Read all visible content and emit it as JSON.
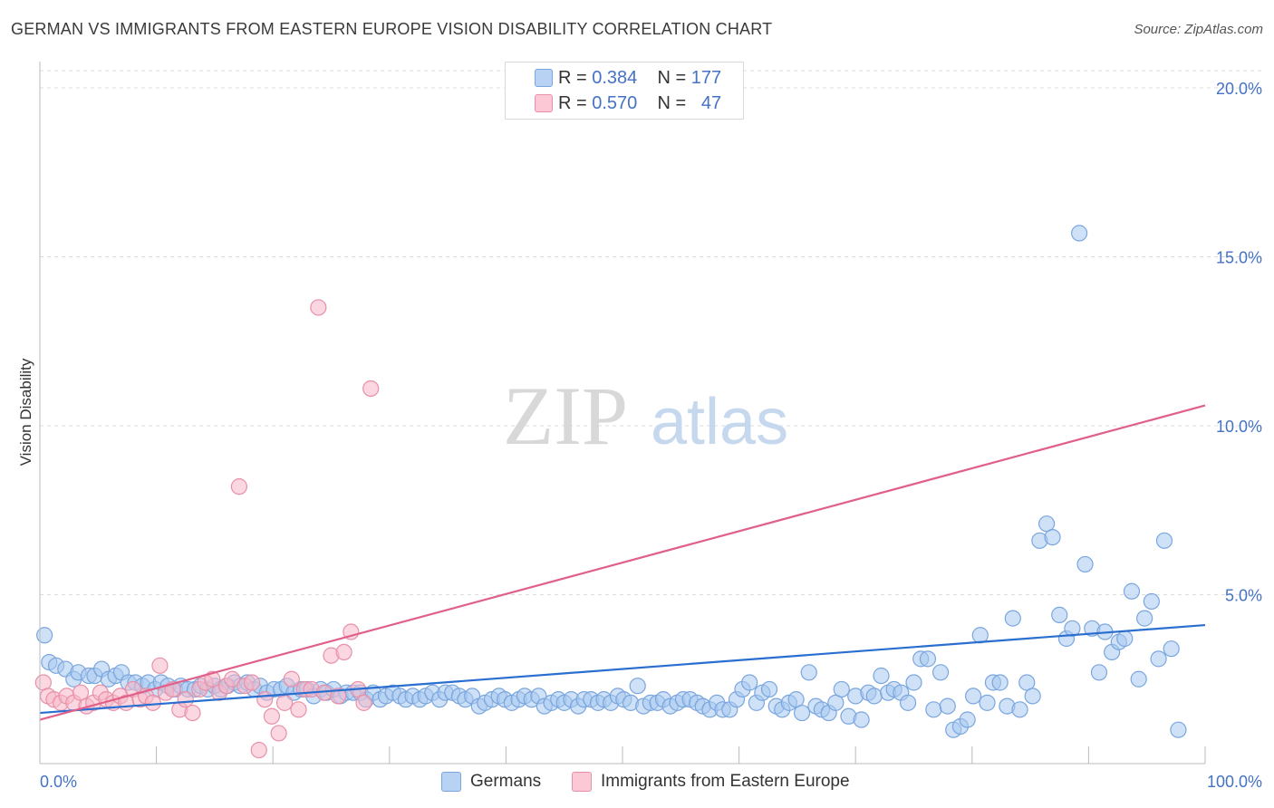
{
  "header": {
    "title": "GERMAN VS IMMIGRANTS FROM EASTERN EUROPE VISION DISABILITY CORRELATION CHART",
    "source": "Source: ZipAtlas.com"
  },
  "legend": {
    "rows": [
      {
        "r_label": "R =",
        "r_value": "0.384",
        "n_label": "N =",
        "n_value": "177",
        "color": "#a8c8f0"
      },
      {
        "r_label": "R =",
        "r_value": "0.570",
        "n_label": "N =",
        "n_value": "47",
        "color": "#f8b8c8"
      }
    ]
  },
  "bottom_legend": {
    "germans": "Germans",
    "immigrants": "Immigrants from Eastern Europe"
  },
  "watermark": {
    "zip": "ZIP",
    "atlas": "atlas"
  },
  "colors": {
    "blue_fill": "#a8c8f0",
    "blue_stroke": "#7aa6de",
    "blue_line": "#2a6fd0",
    "pink_fill": "#f8b8c8",
    "pink_stroke": "#e890a8",
    "pink_line": "#e0608a",
    "tick_text": "#4472c4"
  },
  "chart_data": {
    "type": "scatter",
    "title": "GERMAN VS IMMIGRANTS FROM EASTERN EUROPE VISION DISABILITY CORRELATION CHART",
    "xlabel": "",
    "ylabel": "Vision Disability",
    "xlim": [
      0,
      100
    ],
    "ylim": [
      0,
      21
    ],
    "x_tick_labels": [
      "0.0%",
      "100.0%"
    ],
    "y_ticks": [
      5,
      10,
      15,
      20
    ],
    "y_tick_labels": [
      "5.0%",
      "10.0%",
      "15.0%",
      "20.0%"
    ],
    "grid": true,
    "legend_position": "top-center",
    "series": [
      {
        "name": "Germans",
        "color": "#a8c8f0",
        "trend": {
          "x": [
            0,
            100
          ],
          "y": [
            1.5,
            4.1
          ]
        },
        "points": [
          [
            0.4,
            3.8
          ],
          [
            0.8,
            3.0
          ],
          [
            1.4,
            2.9
          ],
          [
            2.2,
            2.8
          ],
          [
            2.9,
            2.5
          ],
          [
            3.3,
            2.7
          ],
          [
            4.2,
            2.6
          ],
          [
            4.7,
            2.6
          ],
          [
            5.3,
            2.8
          ],
          [
            5.9,
            2.5
          ],
          [
            6.5,
            2.6
          ],
          [
            7.0,
            2.7
          ],
          [
            7.6,
            2.4
          ],
          [
            8.2,
            2.4
          ],
          [
            8.8,
            2.3
          ],
          [
            9.3,
            2.4
          ],
          [
            9.9,
            2.2
          ],
          [
            10.4,
            2.4
          ],
          [
            11.0,
            2.3
          ],
          [
            11.6,
            2.2
          ],
          [
            12.1,
            2.3
          ],
          [
            12.7,
            2.2
          ],
          [
            13.3,
            2.2
          ],
          [
            13.8,
            2.3
          ],
          [
            14.4,
            2.2
          ],
          [
            15.0,
            2.3
          ],
          [
            15.5,
            2.2
          ],
          [
            16.1,
            2.3
          ],
          [
            16.7,
            2.4
          ],
          [
            17.2,
            2.3
          ],
          [
            17.8,
            2.4
          ],
          [
            18.4,
            2.2
          ],
          [
            18.9,
            2.3
          ],
          [
            19.5,
            2.1
          ],
          [
            20.1,
            2.2
          ],
          [
            20.7,
            2.2
          ],
          [
            21.2,
            2.3
          ],
          [
            21.8,
            2.1
          ],
          [
            22.4,
            2.2
          ],
          [
            22.9,
            2.2
          ],
          [
            23.5,
            2.0
          ],
          [
            24.1,
            2.2
          ],
          [
            24.6,
            2.1
          ],
          [
            25.2,
            2.2
          ],
          [
            25.8,
            2.0
          ],
          [
            26.3,
            2.1
          ],
          [
            26.9,
            2.1
          ],
          [
            27.5,
            2.1
          ],
          [
            28.0,
            1.9
          ],
          [
            28.6,
            2.1
          ],
          [
            29.2,
            1.9
          ],
          [
            29.7,
            2.0
          ],
          [
            30.3,
            2.1
          ],
          [
            30.9,
            2.0
          ],
          [
            31.4,
            1.9
          ],
          [
            32.0,
            2.0
          ],
          [
            32.6,
            1.9
          ],
          [
            33.1,
            2.0
          ],
          [
            33.7,
            2.1
          ],
          [
            34.3,
            1.9
          ],
          [
            34.8,
            2.1
          ],
          [
            35.4,
            2.1
          ],
          [
            36.0,
            2.0
          ],
          [
            36.5,
            1.9
          ],
          [
            37.1,
            2.0
          ],
          [
            37.7,
            1.7
          ],
          [
            38.2,
            1.8
          ],
          [
            38.8,
            1.9
          ],
          [
            39.4,
            2.0
          ],
          [
            39.9,
            1.9
          ],
          [
            40.5,
            1.8
          ],
          [
            41.1,
            1.9
          ],
          [
            41.6,
            2.0
          ],
          [
            42.2,
            1.9
          ],
          [
            42.8,
            2.0
          ],
          [
            43.3,
            1.7
          ],
          [
            43.9,
            1.8
          ],
          [
            44.5,
            1.9
          ],
          [
            45.0,
            1.8
          ],
          [
            45.6,
            1.9
          ],
          [
            46.2,
            1.7
          ],
          [
            46.7,
            1.9
          ],
          [
            47.3,
            1.9
          ],
          [
            47.9,
            1.8
          ],
          [
            48.4,
            1.9
          ],
          [
            49.0,
            1.8
          ],
          [
            49.6,
            2.0
          ],
          [
            50.1,
            1.9
          ],
          [
            50.7,
            1.8
          ],
          [
            51.3,
            2.3
          ],
          [
            51.8,
            1.7
          ],
          [
            52.4,
            1.8
          ],
          [
            53.0,
            1.8
          ],
          [
            53.5,
            1.9
          ],
          [
            54.1,
            1.7
          ],
          [
            54.7,
            1.8
          ],
          [
            55.2,
            1.9
          ],
          [
            55.8,
            1.9
          ],
          [
            56.4,
            1.8
          ],
          [
            56.9,
            1.7
          ],
          [
            57.5,
            1.6
          ],
          [
            58.1,
            1.8
          ],
          [
            58.6,
            1.6
          ],
          [
            59.2,
            1.6
          ],
          [
            59.8,
            1.9
          ],
          [
            60.3,
            2.2
          ],
          [
            60.9,
            2.4
          ],
          [
            61.5,
            1.8
          ],
          [
            62.0,
            2.1
          ],
          [
            62.6,
            2.2
          ],
          [
            63.2,
            1.7
          ],
          [
            63.7,
            1.6
          ],
          [
            64.3,
            1.8
          ],
          [
            64.9,
            1.9
          ],
          [
            65.4,
            1.5
          ],
          [
            66.0,
            2.7
          ],
          [
            66.6,
            1.7
          ],
          [
            67.1,
            1.6
          ],
          [
            67.7,
            1.5
          ],
          [
            68.3,
            1.8
          ],
          [
            68.8,
            2.2
          ],
          [
            69.4,
            1.4
          ],
          [
            70.0,
            2.0
          ],
          [
            70.5,
            1.3
          ],
          [
            71.1,
            2.1
          ],
          [
            71.6,
            2.0
          ],
          [
            72.2,
            2.6
          ],
          [
            72.8,
            2.1
          ],
          [
            73.3,
            2.2
          ],
          [
            73.9,
            2.1
          ],
          [
            74.5,
            1.8
          ],
          [
            75.0,
            2.4
          ],
          [
            75.6,
            3.1
          ],
          [
            76.2,
            3.1
          ],
          [
            76.7,
            1.6
          ],
          [
            77.3,
            2.7
          ],
          [
            77.9,
            1.7
          ],
          [
            78.4,
            1.0
          ],
          [
            79.0,
            1.1
          ],
          [
            79.6,
            1.3
          ],
          [
            80.1,
            2.0
          ],
          [
            80.7,
            3.8
          ],
          [
            81.3,
            1.8
          ],
          [
            81.8,
            2.4
          ],
          [
            82.4,
            2.4
          ],
          [
            83.0,
            1.7
          ],
          [
            83.5,
            4.3
          ],
          [
            84.1,
            1.6
          ],
          [
            84.7,
            2.4
          ],
          [
            85.2,
            2.0
          ],
          [
            85.8,
            6.6
          ],
          [
            86.4,
            7.1
          ],
          [
            86.9,
            6.7
          ],
          [
            87.5,
            4.4
          ],
          [
            88.1,
            3.7
          ],
          [
            88.6,
            4.0
          ],
          [
            89.2,
            15.7
          ],
          [
            89.7,
            5.9
          ],
          [
            90.3,
            4.0
          ],
          [
            90.9,
            2.7
          ],
          [
            91.4,
            3.9
          ],
          [
            92.0,
            3.3
          ],
          [
            92.6,
            3.6
          ],
          [
            93.1,
            3.7
          ],
          [
            93.7,
            5.1
          ],
          [
            94.3,
            2.5
          ],
          [
            94.8,
            4.3
          ],
          [
            95.4,
            4.8
          ],
          [
            96.0,
            3.1
          ],
          [
            96.5,
            6.6
          ],
          [
            97.1,
            3.4
          ],
          [
            97.7,
            1.0
          ]
        ]
      },
      {
        "name": "Immigrants from Eastern Europe",
        "color": "#f8b8c8",
        "trend": {
          "x": [
            0,
            100
          ],
          "y": [
            1.3,
            10.6
          ]
        },
        "points": [
          [
            0.3,
            2.4
          ],
          [
            0.7,
            2.0
          ],
          [
            1.2,
            1.9
          ],
          [
            1.8,
            1.8
          ],
          [
            2.3,
            2.0
          ],
          [
            2.9,
            1.8
          ],
          [
            3.5,
            2.1
          ],
          [
            4.0,
            1.7
          ],
          [
            4.6,
            1.8
          ],
          [
            5.2,
            2.1
          ],
          [
            5.7,
            1.9
          ],
          [
            6.3,
            1.8
          ],
          [
            6.9,
            2.0
          ],
          [
            7.4,
            1.8
          ],
          [
            8.0,
            2.2
          ],
          [
            8.6,
            1.9
          ],
          [
            9.1,
            2.0
          ],
          [
            9.7,
            1.8
          ],
          [
            10.3,
            2.9
          ],
          [
            10.8,
            2.1
          ],
          [
            11.4,
            2.2
          ],
          [
            12.0,
            1.6
          ],
          [
            12.5,
            1.9
          ],
          [
            13.1,
            1.5
          ],
          [
            13.7,
            2.2
          ],
          [
            14.2,
            2.4
          ],
          [
            14.8,
            2.5
          ],
          [
            15.4,
            2.1
          ],
          [
            16.0,
            2.3
          ],
          [
            16.5,
            2.5
          ],
          [
            17.1,
            8.2
          ],
          [
            17.6,
            2.3
          ],
          [
            18.2,
            2.4
          ],
          [
            18.8,
            0.4
          ],
          [
            19.3,
            1.9
          ],
          [
            19.9,
            1.4
          ],
          [
            20.5,
            0.9
          ],
          [
            21.0,
            1.8
          ],
          [
            21.6,
            2.5
          ],
          [
            22.2,
            1.6
          ],
          [
            22.7,
            2.2
          ],
          [
            23.3,
            2.2
          ],
          [
            23.9,
            13.5
          ],
          [
            24.4,
            2.1
          ],
          [
            25.0,
            3.2
          ],
          [
            25.6,
            2.0
          ],
          [
            26.1,
            3.3
          ],
          [
            26.7,
            3.9
          ],
          [
            27.3,
            2.2
          ],
          [
            27.8,
            1.8
          ],
          [
            28.4,
            11.1
          ]
        ]
      }
    ]
  }
}
